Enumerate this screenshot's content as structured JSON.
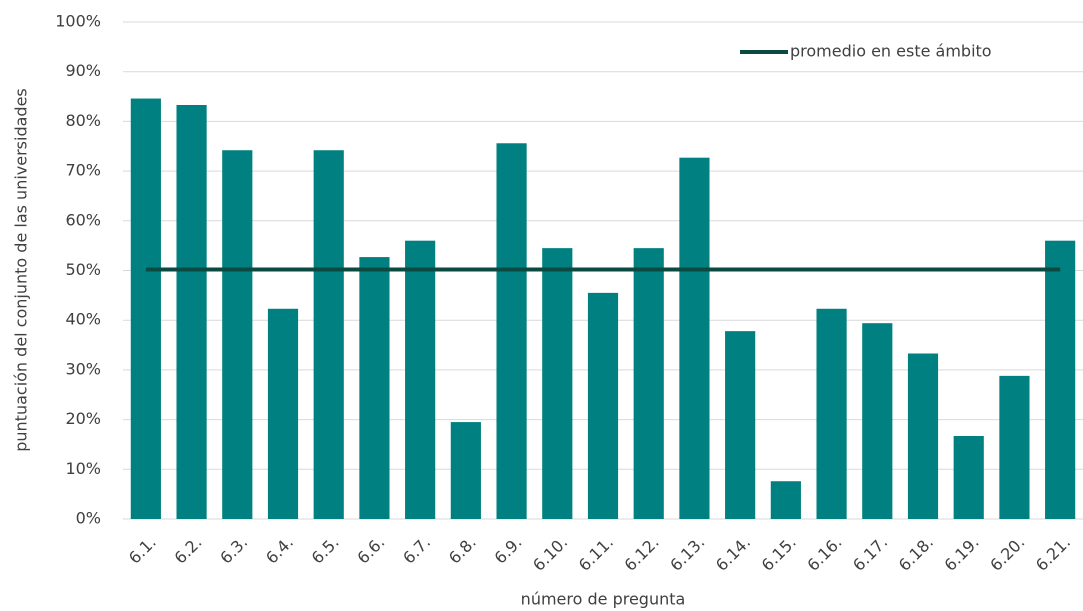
{
  "chart_data": {
    "type": "bar",
    "categories": [
      "6.1.",
      "6.2.",
      "6.3.",
      "6.4.",
      "6.5.",
      "6.6.",
      "6.7.",
      "6.8.",
      "6.9.",
      "6.10.",
      "6.11.",
      "6.12.",
      "6.13.",
      "6.14.",
      "6.15.",
      "6.16.",
      "6.17.",
      "6.18.",
      "6.19.",
      "6.20.",
      "6.21."
    ],
    "values": [
      84.6,
      83.3,
      74.2,
      42.3,
      74.2,
      52.7,
      56.0,
      19.5,
      75.6,
      54.5,
      45.5,
      54.5,
      72.7,
      37.8,
      7.6,
      42.3,
      39.4,
      33.3,
      16.7,
      28.8,
      56.0
    ],
    "color": "#008080",
    "average": {
      "name": "promedio en este ámbito",
      "value": 50.2,
      "color": "#0b4a40"
    },
    "ylabel": "puntuación del conjunto de las universidades",
    "xlabel": "número de pregunta",
    "ylim": [
      0,
      100
    ],
    "yticks": [
      {
        "value": 0,
        "label": "0%"
      },
      {
        "value": 10,
        "label": "10%"
      },
      {
        "value": 20,
        "label": "20%"
      },
      {
        "value": 30,
        "label": "30%"
      },
      {
        "value": 40,
        "label": "40%"
      },
      {
        "value": 50,
        "label": "50%"
      },
      {
        "value": 60,
        "label": "60%"
      },
      {
        "value": 70,
        "label": "70%"
      },
      {
        "value": 80,
        "label": "80%"
      },
      {
        "value": 90,
        "label": "90%"
      },
      {
        "value": 100,
        "label": "100%"
      }
    ],
    "grid": true,
    "legend": "upper right"
  }
}
